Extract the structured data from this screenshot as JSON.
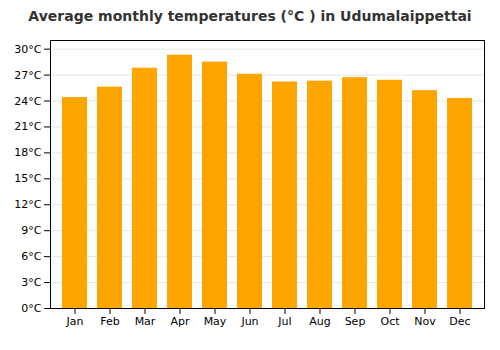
{
  "chart_data": {
    "type": "bar",
    "title": "Average monthly temperatures (°C ) in Udumalaippettai",
    "categories": [
      "Jan",
      "Feb",
      "Mar",
      "Apr",
      "May",
      "Jun",
      "Jul",
      "Aug",
      "Sep",
      "Oct",
      "Nov",
      "Dec"
    ],
    "values": [
      24.4,
      25.6,
      27.8,
      29.3,
      28.5,
      27.1,
      26.2,
      26.3,
      26.7,
      26.4,
      25.2,
      24.3
    ],
    "color": "#FFA500",
    "ylim": [
      0,
      31
    ],
    "yticks": [
      {
        "value": 0,
        "label": "0°C"
      },
      {
        "value": 3,
        "label": "3°C"
      },
      {
        "value": 6,
        "label": "6°C"
      },
      {
        "value": 9,
        "label": "9°C"
      },
      {
        "value": 12,
        "label": "12°C"
      },
      {
        "value": 15,
        "label": "15°C"
      },
      {
        "value": 18,
        "label": "18°C"
      },
      {
        "value": 21,
        "label": "21°C"
      },
      {
        "value": 24,
        "label": "24°C"
      },
      {
        "value": 27,
        "label": "27°C"
      },
      {
        "value": 30,
        "label": "30°C"
      }
    ],
    "grid": true
  }
}
